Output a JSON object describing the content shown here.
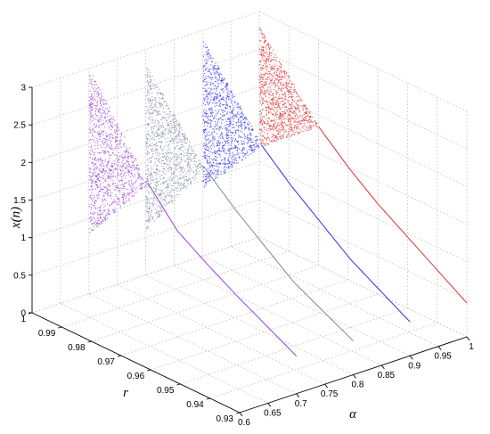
{
  "chart_data": {
    "type": "scatter",
    "projection": "3d",
    "xlabel": "α",
    "ylabel": "r",
    "zlabel": "x(n)",
    "xlim": [
      0.6,
      1.0
    ],
    "ylim": [
      0.93,
      1.0
    ],
    "zlim": [
      0,
      3
    ],
    "x_ticks": [
      "0.6",
      "0.65",
      "0.7",
      "0.75",
      "0.8",
      "0.85",
      "0.9",
      "0.95",
      "1"
    ],
    "y_ticks": [
      "1",
      "0.99",
      "0.98",
      "0.97",
      "0.96",
      "0.95",
      "0.94",
      "0.93"
    ],
    "z_ticks": [
      "0",
      "0.5",
      "1",
      "1.5",
      "2",
      "2.5",
      "3"
    ],
    "grid": true,
    "series": [
      {
        "alpha": 0.7,
        "color": "#9a40d8",
        "curve": [
          [
            0.93,
            0.5
          ],
          [
            0.95,
            0.92
          ],
          [
            0.96,
            1.15
          ],
          [
            0.97,
            1.4
          ],
          [
            0.975,
            1.62
          ],
          [
            0.98,
            1.85
          ]
        ],
        "band_r": [
          0.98,
          1.0
        ],
        "band_low": [
          1.85,
          0.8
        ],
        "band_high": [
          1.85,
          3.0
        ]
      },
      {
        "alpha": 0.8,
        "color": "#7d86a4",
        "curve": [
          [
            0.93,
            0.45
          ],
          [
            0.95,
            0.85
          ],
          [
            0.96,
            1.15
          ],
          [
            0.97,
            1.45
          ],
          [
            0.98,
            1.8
          ]
        ],
        "band_r": [
          0.98,
          1.0
        ],
        "band_low": [
          1.8,
          0.6
        ],
        "band_high": [
          1.8,
          2.8
        ]
      },
      {
        "alpha": 0.9,
        "color": "#2f2ff0",
        "curve": [
          [
            0.93,
            0.45
          ],
          [
            0.95,
            0.9
          ],
          [
            0.96,
            1.2
          ],
          [
            0.97,
            1.5
          ],
          [
            0.98,
            1.85
          ]
        ],
        "band_r": [
          0.98,
          1.0
        ],
        "band_low": [
          1.85,
          0.9
        ],
        "band_high": [
          1.85,
          2.9
        ]
      },
      {
        "alpha": 1.0,
        "color": "#e03030",
        "curve": [
          [
            0.93,
            0.45
          ],
          [
            0.95,
            0.95
          ],
          [
            0.96,
            1.2
          ],
          [
            0.97,
            1.5
          ],
          [
            0.98,
            1.85
          ]
        ],
        "band_r": [
          0.98,
          1.0
        ],
        "band_low": [
          1.85,
          1.2
        ],
        "band_high": [
          1.85,
          2.8
        ]
      }
    ]
  }
}
